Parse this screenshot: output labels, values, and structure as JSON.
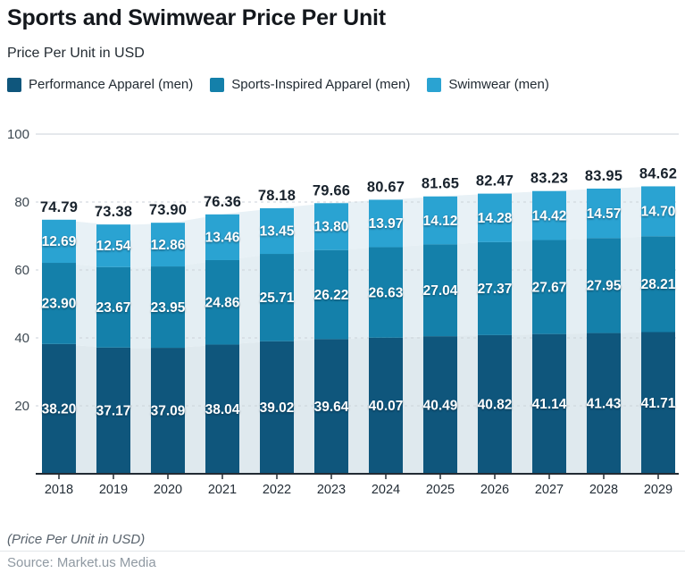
{
  "header": {
    "title": "Sports and Swimwear Price Per Unit",
    "subtitle": "Price Per Unit in USD"
  },
  "chart_data": {
    "type": "bar",
    "stacked": true,
    "title": "Sports and Swimwear Price Per Unit",
    "ylabel": "Price Per Unit in USD",
    "categories": [
      "2018",
      "2019",
      "2020",
      "2021",
      "2022",
      "2023",
      "2024",
      "2025",
      "2026",
      "2027",
      "2028",
      "2029"
    ],
    "series": [
      {
        "name": "Performance Apparel (men)",
        "color": "#0f567c",
        "values": [
          38.2,
          37.17,
          37.09,
          38.04,
          39.02,
          39.64,
          40.07,
          40.49,
          40.82,
          41.14,
          41.43,
          41.71
        ]
      },
      {
        "name": "Sports-Inspired Apparel (men)",
        "color": "#1480aa",
        "values": [
          23.9,
          23.67,
          23.95,
          24.86,
          25.71,
          26.22,
          26.63,
          27.04,
          27.37,
          27.67,
          27.95,
          28.21
        ]
      },
      {
        "name": "Swimwear (men)",
        "color": "#2aa3d2",
        "values": [
          12.69,
          12.54,
          12.86,
          13.46,
          13.45,
          13.8,
          13.97,
          14.12,
          14.28,
          14.42,
          14.57,
          14.7
        ]
      }
    ],
    "totals": [
      74.79,
      73.38,
      73.9,
      76.36,
      78.18,
      79.66,
      80.67,
      81.65,
      82.47,
      83.23,
      83.95,
      84.62
    ],
    "ylim": [
      0,
      100
    ],
    "yticks": [
      20,
      40,
      60,
      80,
      100
    ],
    "grid": "horizontal-dashed",
    "legend_position": "top",
    "background_area_tints": [
      "#dfe9ee",
      "#e4eef3",
      "#e8f1f6"
    ],
    "bar_label_color": "#ffffff",
    "total_label_color": "#18222c",
    "axis_color": "#222b33"
  },
  "footer": {
    "note": "(Price Per Unit in USD)",
    "source": "Source: Market.us Media"
  }
}
